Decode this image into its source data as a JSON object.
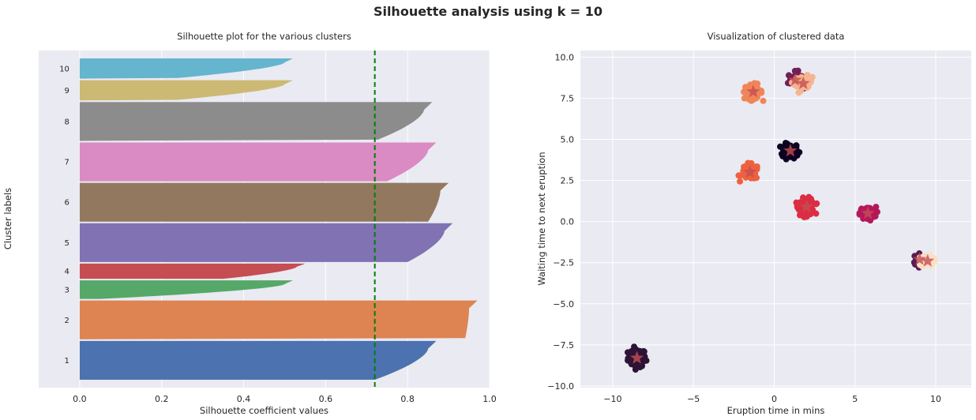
{
  "suptitle": "Silhouette analysis using k = 10",
  "colors": {
    "axes_bg": "#eaeaf2",
    "grid": "#ffffff",
    "average_line": "#008000",
    "centroid_star": "#c44e52"
  },
  "chart_data": [
    {
      "type": "bar",
      "orientation": "horizontal",
      "title": "Silhouette plot for the various clusters",
      "xlabel": "Silhouette coefficient values",
      "ylabel": "Cluster labels",
      "xlim": [
        -0.1,
        1.0
      ],
      "xticks": [
        0.0,
        0.2,
        0.4,
        0.6,
        0.8,
        1.0
      ],
      "xtick_labels": [
        "0.0",
        "0.2",
        "0.4",
        "0.6",
        "0.8",
        "1.0"
      ],
      "grid": true,
      "average_silhouette": 0.72,
      "clusters": [
        {
          "label": "1",
          "size": 46,
          "max": 0.87,
          "tail": 0.72,
          "min": 0.72,
          "color": "#4c72b0"
        },
        {
          "label": "2",
          "size": 46,
          "max": 0.97,
          "tail": 0.94,
          "min": -0.05,
          "color": "#dd8452"
        },
        {
          "label": "3",
          "size": 22,
          "max": 0.52,
          "tail": 0.05,
          "min": 0.05,
          "color": "#55a868"
        },
        {
          "label": "4",
          "size": 18,
          "max": 0.55,
          "tail": 0.35,
          "min": 0.35,
          "color": "#c44e52"
        },
        {
          "label": "5",
          "size": 46,
          "max": 0.91,
          "tail": 0.8,
          "min": 0.8,
          "color": "#8172b3"
        },
        {
          "label": "6",
          "size": 46,
          "max": 0.9,
          "tail": 0.85,
          "min": 0.85,
          "color": "#937860"
        },
        {
          "label": "7",
          "size": 46,
          "max": 0.87,
          "tail": 0.75,
          "min": 0.75,
          "color": "#da8bc3"
        },
        {
          "label": "8",
          "size": 46,
          "max": 0.86,
          "tail": 0.72,
          "min": -0.04,
          "color": "#8c8c8c"
        },
        {
          "label": "9",
          "size": 24,
          "max": 0.52,
          "tail": 0.22,
          "min": -0.02,
          "color": "#ccb974"
        },
        {
          "label": "10",
          "size": 24,
          "max": 0.52,
          "tail": 0.22,
          "min": -0.02,
          "color": "#64b5cd"
        }
      ]
    },
    {
      "type": "scatter",
      "title": "Visualization of clustered data",
      "xlabel": "Eruption time in mins",
      "ylabel": "Waiting time to next eruption",
      "xlim": [
        -12,
        12.2
      ],
      "ylim": [
        -10.1,
        10.4
      ],
      "xticks": [
        -10,
        -5,
        0,
        5,
        10
      ],
      "xtick_labels": [
        "−10",
        "−5",
        "0",
        "5",
        "10"
      ],
      "yticks": [
        -10.0,
        -7.5,
        -5.0,
        -2.5,
        0.0,
        2.5,
        5.0,
        7.5,
        10.0
      ],
      "ytick_labels": [
        "−10.0",
        "−7.5",
        "−5.0",
        "−2.5",
        "0.0",
        "2.5",
        "5.0",
        "7.5",
        "10.0"
      ],
      "grid": true,
      "clusters": [
        {
          "center": [
            -8.5,
            -8.3
          ],
          "spread": [
            0.5,
            0.5
          ],
          "n": 90,
          "color": "#2d1437"
        },
        {
          "center": [
            1.0,
            4.3
          ],
          "spread": [
            0.45,
            0.4
          ],
          "n": 100,
          "color": "#0d0221"
        },
        {
          "center": [
            1.3,
            8.6
          ],
          "spread": [
            0.4,
            0.45
          ],
          "n": 45,
          "color": "#701f57"
        },
        {
          "center": [
            1.8,
            8.4
          ],
          "spread": [
            0.5,
            0.4
          ],
          "n": 35,
          "color": "#f6b48f"
        },
        {
          "center": [
            -1.3,
            7.9
          ],
          "spread": [
            0.5,
            0.4
          ],
          "n": 90,
          "color": "#f0855a"
        },
        {
          "center": [
            -1.5,
            3.0
          ],
          "spread": [
            0.5,
            0.4
          ],
          "n": 90,
          "color": "#ee6140"
        },
        {
          "center": [
            2.0,
            0.9
          ],
          "spread": [
            0.45,
            0.45
          ],
          "n": 90,
          "color": "#db2d43"
        },
        {
          "center": [
            5.8,
            0.5
          ],
          "spread": [
            0.45,
            0.35
          ],
          "n": 90,
          "color": "#b4185b"
        },
        {
          "center": [
            9.0,
            -2.3
          ],
          "spread": [
            0.35,
            0.35
          ],
          "n": 45,
          "color": "#571d52"
        },
        {
          "center": [
            9.5,
            -2.4
          ],
          "spread": [
            0.35,
            0.35
          ],
          "n": 45,
          "color": "#fbe0c6"
        }
      ],
      "centroids": [
        [
          -8.5,
          -8.3
        ],
        [
          1.0,
          4.3
        ],
        [
          1.3,
          8.6
        ],
        [
          1.8,
          8.4
        ],
        [
          -1.3,
          7.9
        ],
        [
          -1.5,
          3.0
        ],
        [
          2.0,
          0.9
        ],
        [
          5.8,
          0.5
        ],
        [
          9.0,
          -2.3
        ],
        [
          9.5,
          -2.4
        ]
      ]
    }
  ]
}
